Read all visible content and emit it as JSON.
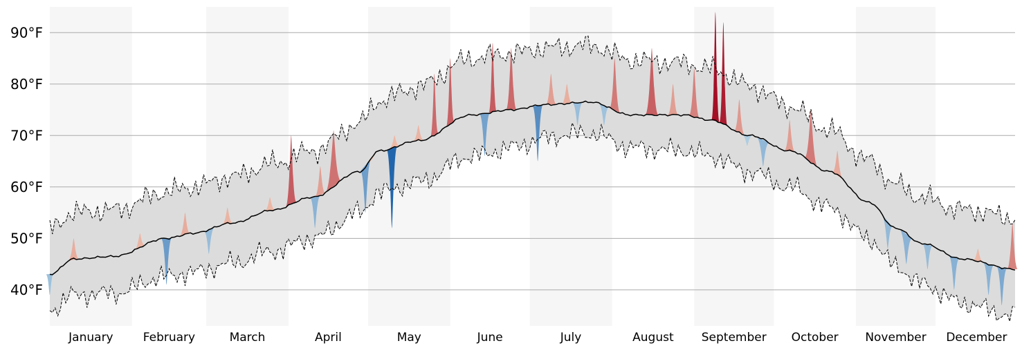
{
  "chart_data": {
    "type": "area",
    "title": "",
    "xlabel": "",
    "ylabel": "",
    "ylim": [
      33,
      95
    ],
    "y_ticks": [
      {
        "value": 40,
        "label": "40°F"
      },
      {
        "value": 50,
        "label": "50°F"
      },
      {
        "value": 60,
        "label": "60°F"
      },
      {
        "value": 70,
        "label": "70°F"
      },
      {
        "value": 80,
        "label": "80°F"
      },
      {
        "value": 90,
        "label": "90°F"
      }
    ],
    "grid": "horizontal",
    "months": [
      "January",
      "February",
      "March",
      "April",
      "May",
      "June",
      "July",
      "August",
      "September",
      "October",
      "November",
      "December"
    ],
    "month_days": [
      31,
      28,
      31,
      30,
      31,
      30,
      31,
      31,
      30,
      31,
      30,
      31
    ],
    "shaded_months": [
      "January",
      "March",
      "May",
      "July",
      "September",
      "November"
    ],
    "normal_anchors": [
      [
        1,
        43
      ],
      [
        10,
        46
      ],
      [
        25,
        46.5
      ],
      [
        45,
        50
      ],
      [
        55,
        51
      ],
      [
        70,
        53
      ],
      [
        85,
        55.5
      ],
      [
        100,
        58
      ],
      [
        118,
        63
      ],
      [
        125,
        67
      ],
      [
        140,
        69
      ],
      [
        160,
        74
      ],
      [
        175,
        75
      ],
      [
        188,
        76
      ],
      [
        205,
        76.5
      ],
      [
        220,
        74
      ],
      [
        240,
        74
      ],
      [
        250,
        73
      ],
      [
        265,
        70
      ],
      [
        280,
        67
      ],
      [
        295,
        63
      ],
      [
        310,
        57
      ],
      [
        320,
        52
      ],
      [
        330,
        49
      ],
      [
        345,
        46
      ],
      [
        365,
        44
      ]
    ],
    "band_anchors": [
      {
        "day": 1,
        "high": 9,
        "low": 7
      },
      {
        "day": 100,
        "high": 9,
        "low": 8
      },
      {
        "day": 160,
        "high": 11,
        "low": 8
      },
      {
        "day": 200,
        "high": 11,
        "low": 6
      },
      {
        "day": 250,
        "high": 10,
        "low": 7
      },
      {
        "day": 300,
        "high": 8,
        "low": 7
      },
      {
        "day": 365,
        "high": 10,
        "low": 9
      }
    ],
    "series": [
      {
        "role": "warm",
        "color_min": "#f2c6b1",
        "color_max": "#a50f26",
        "spikes": [
          {
            "day": 10,
            "peak": 50,
            "width": 2
          },
          {
            "day": 35,
            "peak": 51,
            "width": 2
          },
          {
            "day": 52,
            "peak": 55,
            "width": 2
          },
          {
            "day": 68,
            "peak": 56,
            "width": 2
          },
          {
            "day": 84,
            "peak": 58,
            "width": 2
          },
          {
            "day": 92,
            "peak": 70,
            "width": 2
          },
          {
            "day": 103,
            "peak": 64,
            "width": 2
          },
          {
            "day": 108,
            "peak": 71,
            "width": 3
          },
          {
            "day": 122,
            "peak": 65,
            "width": 2
          },
          {
            "day": 131,
            "peak": 70,
            "width": 2
          },
          {
            "day": 140,
            "peak": 72,
            "width": 2
          },
          {
            "day": 146,
            "peak": 82,
            "width": 1.5
          },
          {
            "day": 152,
            "peak": 85,
            "width": 1.5
          },
          {
            "day": 162,
            "peak": 74,
            "width": 2
          },
          {
            "day": 168,
            "peak": 88,
            "width": 1.5
          },
          {
            "day": 175,
            "peak": 87,
            "width": 2
          },
          {
            "day": 190,
            "peak": 82,
            "width": 2
          },
          {
            "day": 196,
            "peak": 80,
            "width": 2
          },
          {
            "day": 214,
            "peak": 85,
            "width": 2
          },
          {
            "day": 228,
            "peak": 87,
            "width": 2.5
          },
          {
            "day": 236,
            "peak": 80,
            "width": 2
          },
          {
            "day": 244,
            "peak": 83,
            "width": 2
          },
          {
            "day": 252,
            "peak": 94,
            "width": 1.5
          },
          {
            "day": 255,
            "peak": 92,
            "width": 1.5
          },
          {
            "day": 261,
            "peak": 77,
            "width": 2
          },
          {
            "day": 280,
            "peak": 73,
            "width": 2
          },
          {
            "day": 288,
            "peak": 75,
            "width": 2.5
          },
          {
            "day": 298,
            "peak": 67,
            "width": 2
          },
          {
            "day": 351,
            "peak": 48,
            "width": 2
          },
          {
            "day": 364,
            "peak": 53,
            "width": 2
          }
        ]
      },
      {
        "role": "cool",
        "color_min": "#bcd7e8",
        "color_max": "#2166ac",
        "spikes": [
          {
            "day": 1,
            "peak": 39,
            "width": 1.5
          },
          {
            "day": 45,
            "peak": 41,
            "width": 2
          },
          {
            "day": 61,
            "peak": 47,
            "width": 2
          },
          {
            "day": 101,
            "peak": 52,
            "width": 2
          },
          {
            "day": 120,
            "peak": 55,
            "width": 2
          },
          {
            "day": 130,
            "peak": 52,
            "width": 2
          },
          {
            "day": 165,
            "peak": 66,
            "width": 2
          },
          {
            "day": 185,
            "peak": 65,
            "width": 2
          },
          {
            "day": 200,
            "peak": 72,
            "width": 2
          },
          {
            "day": 210,
            "peak": 72,
            "width": 2
          },
          {
            "day": 264,
            "peak": 68,
            "width": 2
          },
          {
            "day": 270,
            "peak": 64,
            "width": 2.5
          },
          {
            "day": 317,
            "peak": 48,
            "width": 2
          },
          {
            "day": 324,
            "peak": 45,
            "width": 2.5
          },
          {
            "day": 332,
            "peak": 44,
            "width": 2
          },
          {
            "day": 342,
            "peak": 40,
            "width": 2
          },
          {
            "day": 355,
            "peak": 39,
            "width": 2
          },
          {
            "day": 360,
            "peak": 37,
            "width": 2
          }
        ]
      }
    ]
  },
  "colors": {
    "band_fill": "#dcdcdc",
    "month_shade": "#f6f6f6",
    "gridline": "#aaaaaa",
    "normal_line": "#000000"
  }
}
